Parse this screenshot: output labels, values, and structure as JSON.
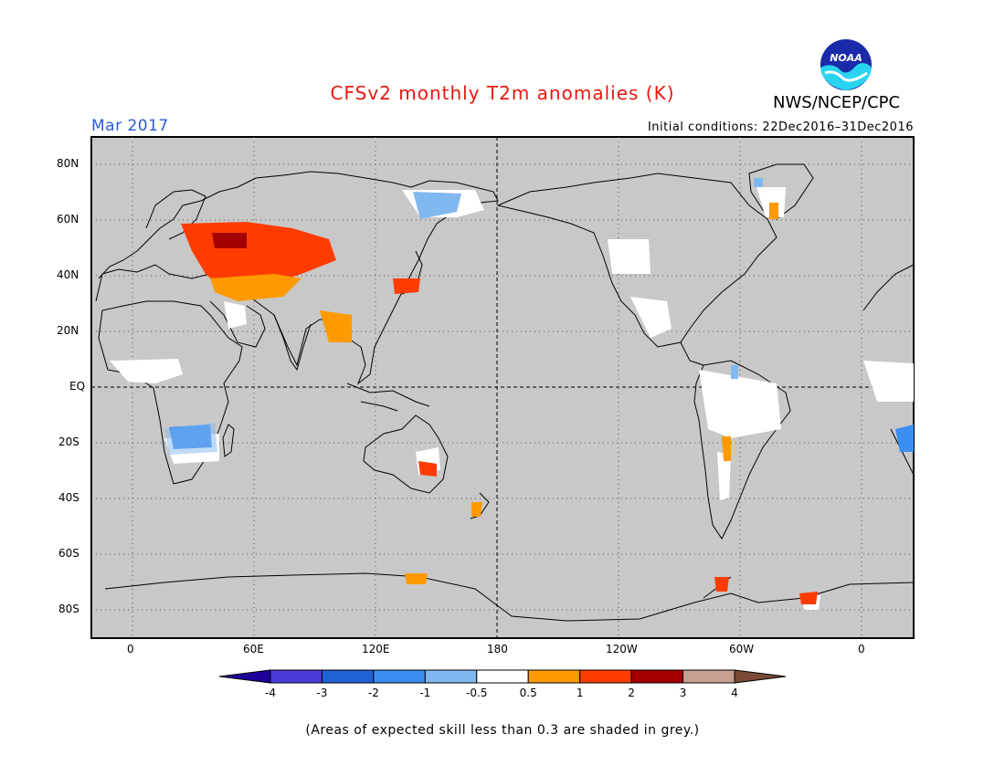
{
  "header": {
    "title": "CFSv2 monthly T2m anomalies (K)",
    "month": "Mar 2017",
    "initial_conditions": "Initial conditions: 22Dec2016–31Dec2016",
    "agency": "NWS/NCEP/CPC",
    "logo_text": "NOAA"
  },
  "map": {
    "background_color": "#c8c8c8",
    "y_axis_labels": [
      "80N",
      "60N",
      "40N",
      "20N",
      "EQ",
      "20S",
      "40S",
      "60S",
      "80S"
    ],
    "x_axis_labels": [
      "0",
      "60E",
      "120E",
      "180",
      "120W",
      "60W",
      "0"
    ],
    "gridlines": "dotted",
    "dashed_lines": [
      "EQ",
      "180"
    ]
  },
  "colorbar": {
    "ticks": [
      "-4",
      "-3",
      "-2",
      "-1",
      "-0.5",
      "0.5",
      "1",
      "2",
      "3",
      "4"
    ],
    "colors": [
      "#1d009a",
      "#4a3ad6",
      "#2161d6",
      "#3c8df0",
      "#82b8f0",
      "#ffffff",
      "#ff9a00",
      "#ff3c00",
      "#a50000",
      "#c8a090",
      "#7a4a36"
    ]
  },
  "footnote": "(Areas of expected skill less than 0.3 are shaded in grey.)"
}
